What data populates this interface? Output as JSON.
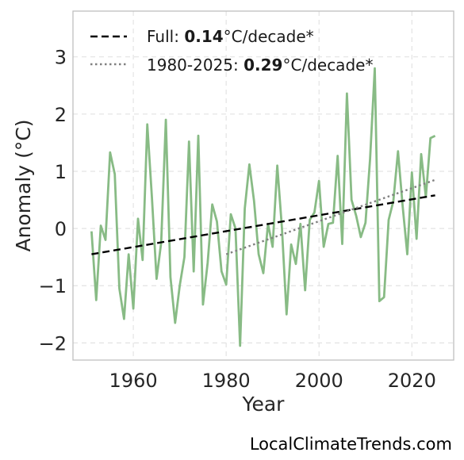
{
  "chart_data": {
    "type": "line",
    "xlabel": "Year",
    "ylabel": "Anomaly (°C)",
    "xlim": [
      1947,
      2029
    ],
    "ylim": [
      -2.3,
      3.8
    ],
    "x_ticks": [
      1960,
      1980,
      2000,
      2020
    ],
    "y_ticks": [
      -2,
      -1,
      0,
      1,
      2,
      3
    ],
    "y_tick_labels": [
      "−2",
      "−1",
      "0",
      "1",
      "2",
      "3"
    ],
    "grid": true,
    "legend_position": "top-left",
    "series": [
      {
        "color": "#88bb85",
        "style": "solid",
        "x": [
          1951,
          1952,
          1953,
          1954,
          1955,
          1956,
          1957,
          1958,
          1959,
          1960,
          1961,
          1962,
          1963,
          1964,
          1965,
          1966,
          1967,
          1968,
          1969,
          1970,
          1971,
          1972,
          1973,
          1974,
          1975,
          1976,
          1977,
          1978,
          1979,
          1980,
          1981,
          1982,
          1983,
          1984,
          1985,
          1986,
          1987,
          1988,
          1989,
          1990,
          1991,
          1992,
          1993,
          1994,
          1995,
          1996,
          1997,
          1998,
          1999,
          2000,
          2001,
          2002,
          2003,
          2004,
          2005,
          2006,
          2007,
          2008,
          2009,
          2010,
          2011,
          2012,
          2013,
          2014,
          2015,
          2016,
          2017,
          2018,
          2019,
          2020,
          2021,
          2022,
          2023,
          2024,
          2025
        ],
        "y": [
          -0.05,
          -1.25,
          0.05,
          -0.2,
          1.33,
          0.95,
          -1.05,
          -1.58,
          -0.45,
          -1.4,
          0.17,
          -0.55,
          1.82,
          0.55,
          -0.88,
          -0.25,
          1.9,
          -0.85,
          -1.65,
          -1.0,
          -0.5,
          1.52,
          -0.75,
          1.62,
          -1.33,
          -0.6,
          0.42,
          0.12,
          -0.75,
          -0.98,
          0.25,
          0.0,
          -2.05,
          0.35,
          1.12,
          0.48,
          -0.45,
          -0.78,
          0.08,
          -0.32,
          1.1,
          0.02,
          -1.5,
          -0.28,
          -0.62,
          0.08,
          -1.08,
          0.15,
          0.28,
          0.83,
          -0.32,
          0.08,
          0.1,
          1.27,
          -0.27,
          2.36,
          0.5,
          0.22,
          -0.15,
          0.1,
          1.22,
          2.8,
          -1.27,
          -1.2,
          0.15,
          0.48,
          1.35,
          0.4,
          -0.45,
          0.98,
          -0.18,
          1.3,
          0.55,
          1.58,
          1.62
        ]
      },
      {
        "name": "Full",
        "color": "#000000",
        "style": "dashed",
        "x": [
          1951,
          2025
        ],
        "y": [
          -0.45,
          0.58
        ],
        "label_value": "0.14",
        "label_unit": "°C/decade*"
      },
      {
        "name": "1980-2025",
        "color": "#808080",
        "style": "dotted",
        "x": [
          1980,
          2025
        ],
        "y": [
          -0.45,
          0.85
        ],
        "label_value": "0.29",
        "label_unit": "°C/decade*"
      }
    ]
  },
  "credit": "LocalClimateTrends.com"
}
